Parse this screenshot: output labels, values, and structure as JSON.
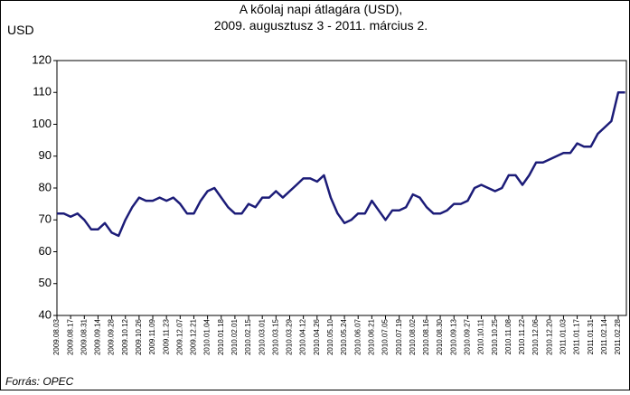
{
  "chart_data": {
    "type": "line",
    "title": "A kőolaj napi átlagára (USD),",
    "subtitle": "2009. augusztusz 3 - 2011. március 2.",
    "y_label": "USD",
    "source": "Forrás: OPEC",
    "categories": [
      "2009.08.03",
      null,
      "2009.08.17",
      null,
      "2009.08.31",
      null,
      "2009.09.14",
      null,
      "2009.09.28",
      null,
      "2009.10.12",
      null,
      "2009.10.26",
      null,
      "2009.11.09",
      null,
      "2009.11.23",
      null,
      "2009.12.07",
      null,
      "2009.12.21",
      null,
      "2010.01.04",
      null,
      "2010.01.18",
      null,
      "2010.02.01",
      null,
      "2010.02.15",
      null,
      "2010.03.01",
      null,
      "2010.03.15",
      null,
      "2010.03.29",
      null,
      "2010.04.12",
      null,
      "2010.04.26",
      null,
      "2010.05.10",
      null,
      "2010.05.24",
      null,
      "2010.06.07",
      null,
      "2010.06.21",
      null,
      "2010.07.05",
      null,
      "2010.07.19",
      null,
      "2010.08.02",
      null,
      "2010.08.16",
      null,
      "2010.08.30",
      null,
      "2010.09.13",
      null,
      "2010.09.27",
      null,
      "2010.10.11",
      null,
      "2010.10.25",
      null,
      "2010.11.08",
      null,
      "2010.11.22",
      null,
      "2010.12.06",
      null,
      "2010.12.20",
      null,
      "2011.01.03",
      null,
      "2011.01.17",
      null,
      "2011.01.31",
      null,
      "2011.02.14",
      null,
      "2011.02.28",
      null
    ],
    "series": [
      {
        "name": "USD",
        "color": "#1c1c78",
        "values": [
          72,
          72,
          71,
          72,
          70,
          67,
          67,
          69,
          66,
          65,
          70,
          74,
          77,
          76,
          76,
          77,
          76,
          77,
          75,
          72,
          72,
          76,
          79,
          80,
          77,
          74,
          72,
          72,
          75,
          74,
          77,
          77,
          79,
          77,
          79,
          81,
          83,
          83,
          82,
          84,
          77,
          72,
          69,
          70,
          72,
          72,
          76,
          73,
          70,
          73,
          73,
          74,
          78,
          77,
          74,
          72,
          72,
          73,
          75,
          75,
          76,
          80,
          81,
          80,
          79,
          80,
          84,
          84,
          81,
          84,
          88,
          88,
          89,
          90,
          91,
          91,
          94,
          93,
          93,
          97,
          99,
          101,
          110,
          110
        ]
      }
    ],
    "ylim": [
      40,
      120
    ],
    "yticks": [
      40,
      50,
      60,
      70,
      80,
      90,
      100,
      110,
      120
    ],
    "grid": false,
    "legend": false
  }
}
